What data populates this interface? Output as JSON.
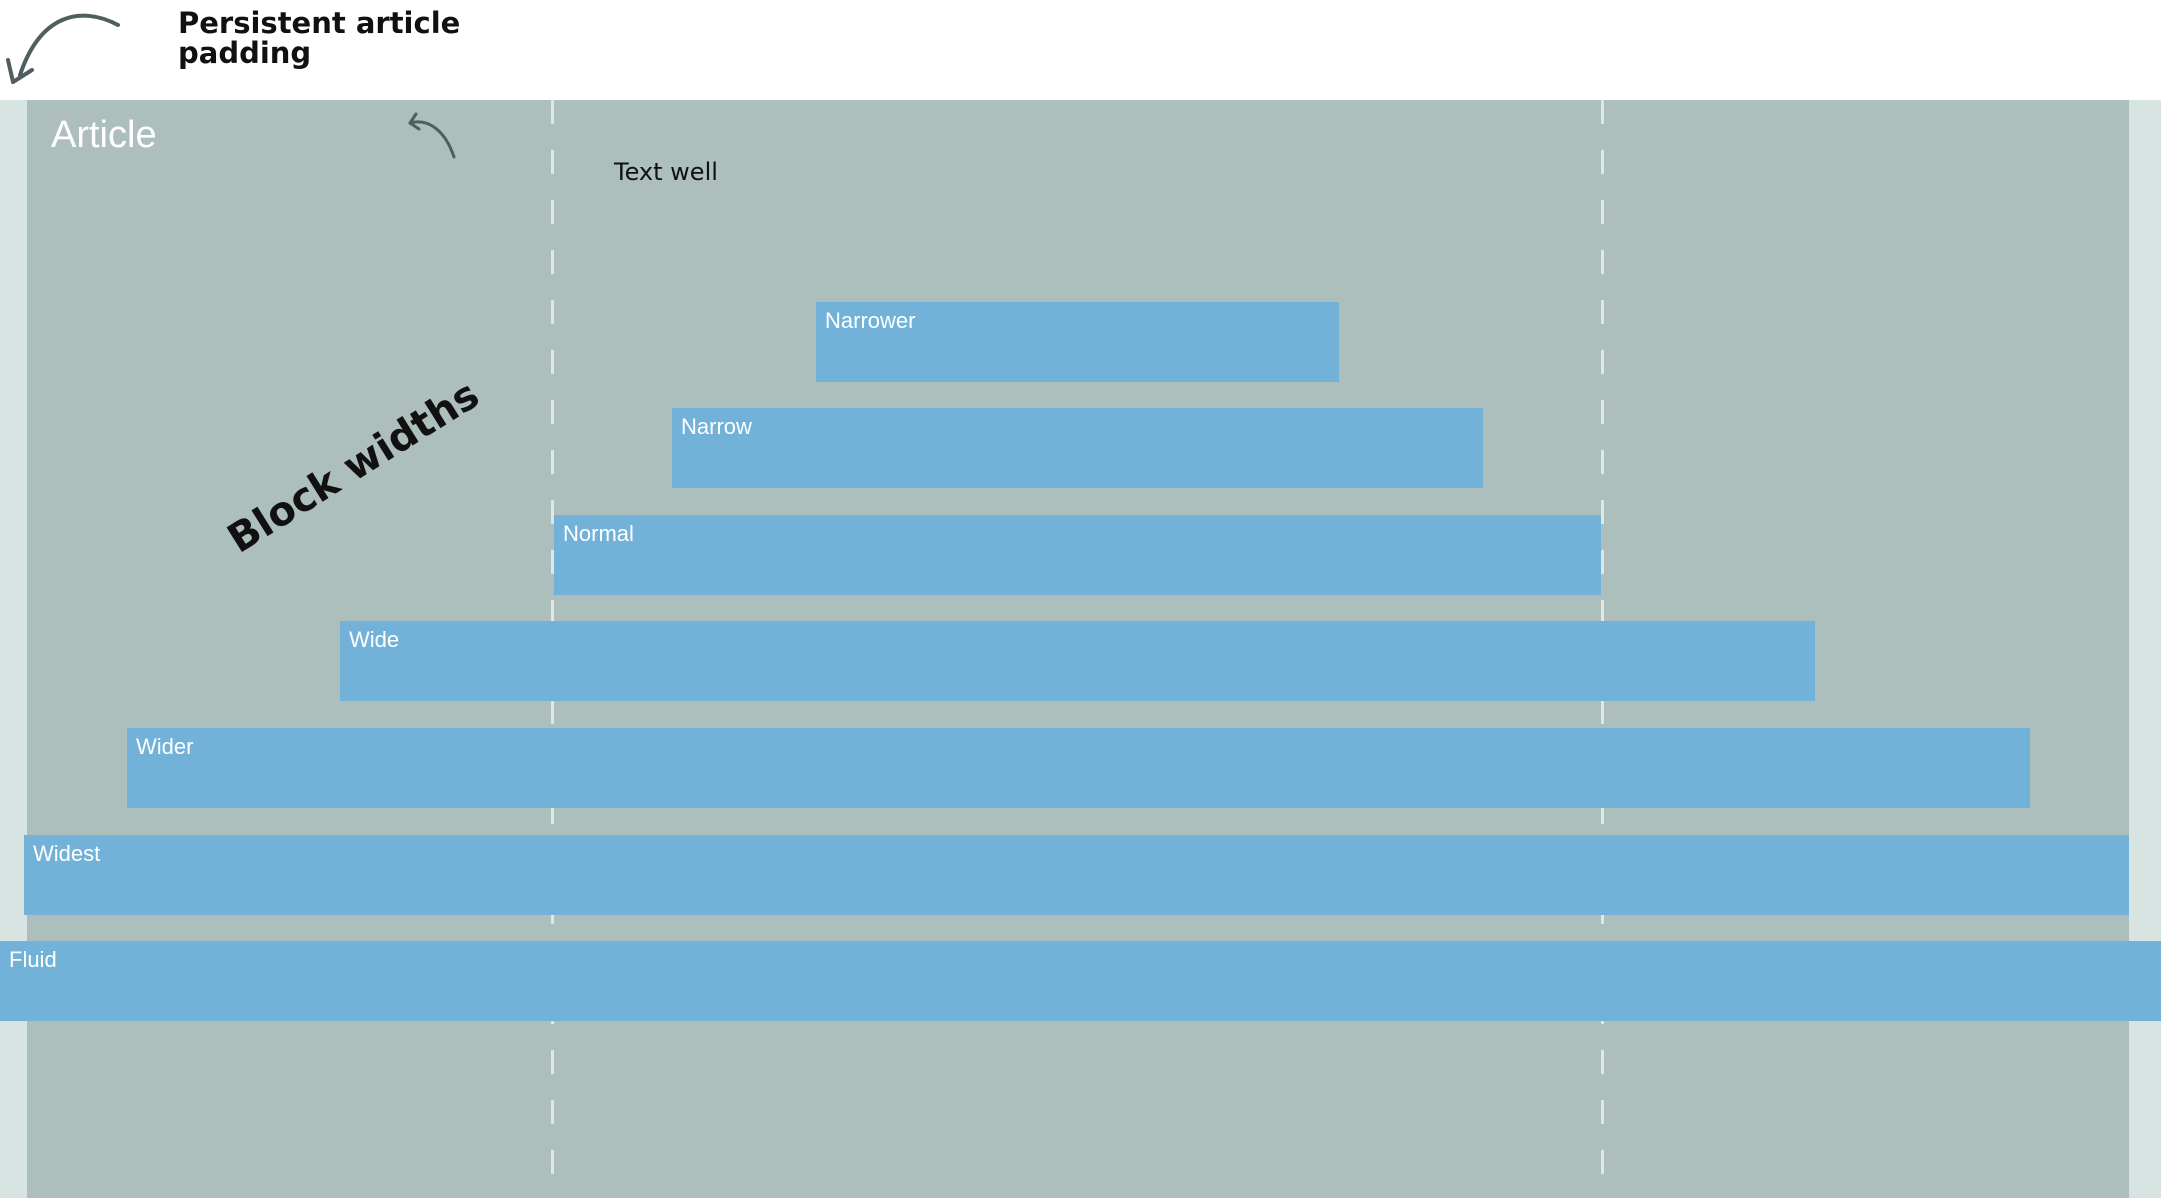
{
  "annotations": {
    "padding_note": "Persistent article\npadding",
    "text_well_note": "Text well",
    "block_widths_note": "Block widths"
  },
  "article": {
    "title": "Article"
  },
  "blocks": [
    {
      "label": "Narrower"
    },
    {
      "label": "Narrow"
    },
    {
      "label": "Normal"
    },
    {
      "label": "Wide"
    },
    {
      "label": "Wider"
    },
    {
      "label": "Widest"
    },
    {
      "label": "Fluid"
    }
  ],
  "colors": {
    "background": "#ffffff",
    "padding": "#d8e4e1",
    "article": "#adbfbd",
    "block": "#72b2d8",
    "arrow": "#4f5f5e"
  }
}
